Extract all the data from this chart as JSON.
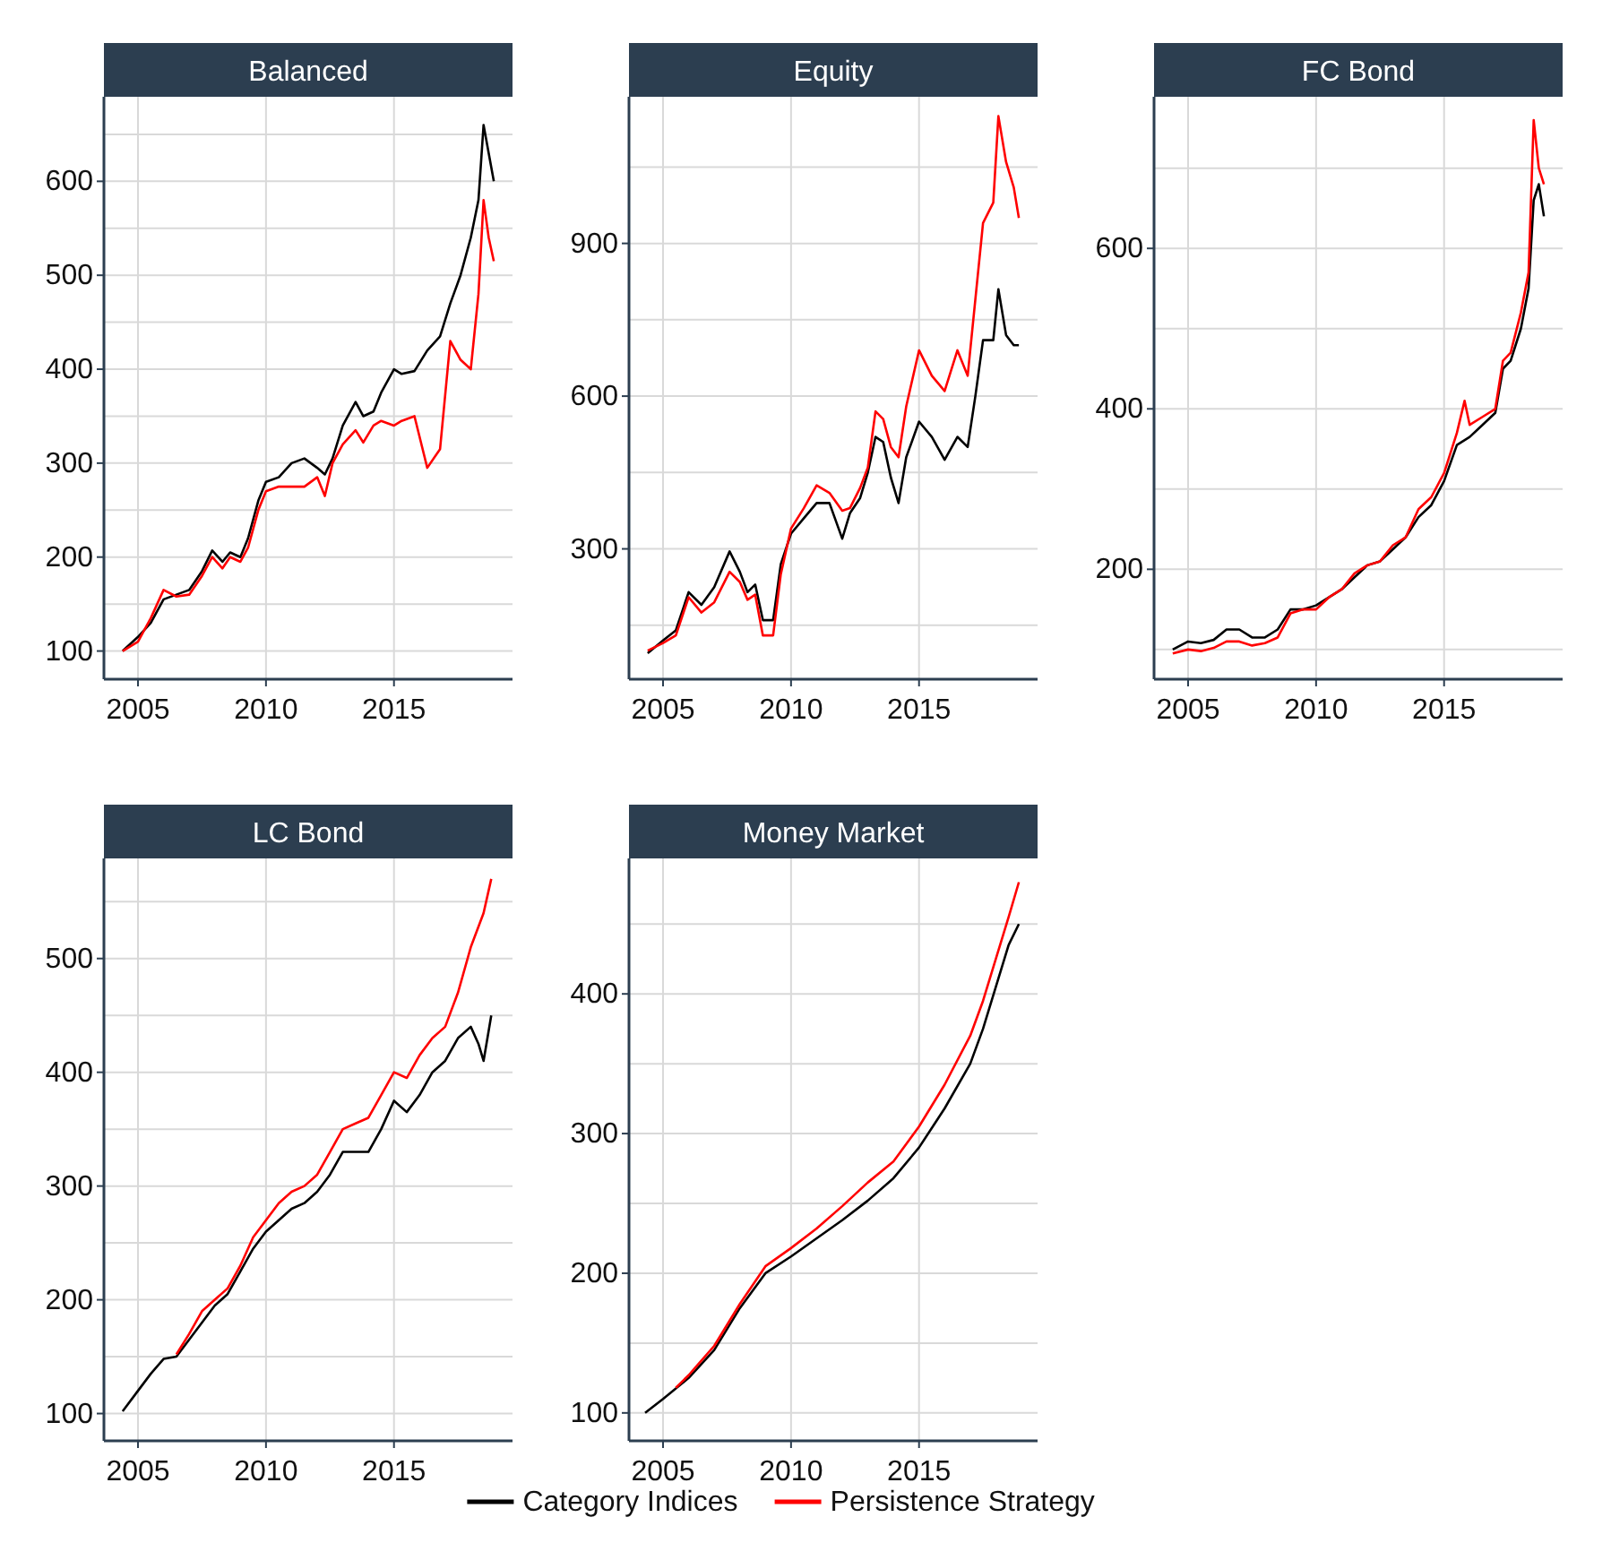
{
  "chart_data": [
    {
      "type": "line",
      "title": "Balanced",
      "xlim": [
        2003.67,
        2019.63
      ],
      "xticks": [
        2005,
        2010,
        2015
      ],
      "ylim": [
        70,
        690
      ],
      "yticks": [
        {
          "value": 150,
          "label": null
        },
        {
          "value": 250,
          "label": null
        },
        {
          "value": 350,
          "label": null
        },
        {
          "value": 450,
          "label": null
        },
        {
          "value": 550,
          "label": null
        },
        {
          "value": 650,
          "label": null
        },
        100,
        200,
        300,
        400,
        500,
        600
      ],
      "grid": true,
      "legend": "bottom",
      "series": [
        {
          "name": "Category Indices",
          "color": "#000000",
          "x": [
            2004.4,
            2005,
            2005.5,
            2006,
            2006.5,
            2007,
            2007.5,
            2007.9,
            2008.3,
            2008.6,
            2009,
            2009.3,
            2009.7,
            2010,
            2010.5,
            2011,
            2011.5,
            2012,
            2012.3,
            2012.6,
            2013,
            2013.5,
            2013.8,
            2014.2,
            2014.5,
            2015,
            2015.3,
            2015.8,
            2016.3,
            2016.8,
            2017.2,
            2017.6,
            2018,
            2018.3,
            2018.5,
            2018.7,
            2018.9
          ],
          "values": [
            100,
            115,
            130,
            155,
            160,
            165,
            185,
            207,
            195,
            205,
            200,
            220,
            260,
            280,
            285,
            300,
            305,
            295,
            288,
            305,
            340,
            365,
            350,
            355,
            375,
            400,
            395,
            398,
            420,
            435,
            470,
            500,
            540,
            580,
            660,
            630,
            600
          ]
        },
        {
          "name": "Persistence Strategy",
          "color": "#ff0000",
          "x": [
            2004.4,
            2005,
            2005.5,
            2006,
            2006.5,
            2007,
            2007.5,
            2007.9,
            2008.3,
            2008.6,
            2009,
            2009.3,
            2009.7,
            2010,
            2010.5,
            2011,
            2011.5,
            2012,
            2012.3,
            2012.6,
            2013,
            2013.5,
            2013.8,
            2014.2,
            2014.5,
            2015,
            2015.3,
            2015.8,
            2016.3,
            2016.8,
            2017.2,
            2017.6,
            2018,
            2018.3,
            2018.5,
            2018.7,
            2018.9
          ],
          "values": [
            100,
            110,
            135,
            165,
            158,
            160,
            180,
            200,
            188,
            200,
            195,
            210,
            250,
            270,
            275,
            275,
            275,
            285,
            265,
            300,
            320,
            335,
            322,
            340,
            345,
            340,
            345,
            350,
            295,
            315,
            430,
            410,
            400,
            480,
            580,
            540,
            515
          ]
        }
      ]
    },
    {
      "type": "line",
      "title": "Equity",
      "xlim": [
        2003.67,
        2019.63
      ],
      "xticks": [
        2005,
        2010,
        2015
      ],
      "ylim": [
        44,
        1188
      ],
      "yticks": [
        {
          "value": 150,
          "label": null
        },
        {
          "value": 450,
          "label": null
        },
        {
          "value": 750,
          "label": null
        },
        {
          "value": 1050,
          "label": null
        },
        300,
        600,
        900
      ],
      "grid": true,
      "series": [
        {
          "color": "#000000",
          "x": [
            2004.4,
            2005,
            2005.5,
            2006,
            2006.5,
            2007,
            2007.6,
            2008,
            2008.3,
            2008.6,
            2008.9,
            2009.3,
            2009.6,
            2010,
            2010.5,
            2011,
            2011.5,
            2012,
            2012.3,
            2012.7,
            2013,
            2013.3,
            2013.6,
            2013.9,
            2014.2,
            2014.5,
            2015,
            2015.5,
            2016,
            2016.5,
            2016.9,
            2017.2,
            2017.5,
            2017.9,
            2018.1,
            2018.4,
            2018.7,
            2018.9
          ],
          "values": [
            95,
            120,
            140,
            215,
            190,
            225,
            295,
            255,
            215,
            230,
            160,
            160,
            270,
            330,
            360,
            390,
            390,
            320,
            370,
            400,
            450,
            520,
            510,
            440,
            390,
            480,
            550,
            520,
            475,
            520,
            500,
            600,
            710,
            710,
            810,
            720,
            700,
            700
          ]
        },
        {
          "color": "#ff0000",
          "x": [
            2004.4,
            2005,
            2005.5,
            2006,
            2006.5,
            2007,
            2007.6,
            2008,
            2008.3,
            2008.6,
            2008.9,
            2009.3,
            2009.6,
            2010,
            2010.5,
            2011,
            2011.5,
            2012,
            2012.3,
            2012.7,
            2013,
            2013.3,
            2013.6,
            2013.9,
            2014.2,
            2014.5,
            2015,
            2015.5,
            2016,
            2016.5,
            2016.9,
            2017.2,
            2017.5,
            2017.9,
            2018.1,
            2018.4,
            2018.7,
            2018.9
          ],
          "values": [
            100,
            115,
            130,
            205,
            175,
            195,
            255,
            235,
            200,
            210,
            130,
            130,
            250,
            340,
            380,
            425,
            410,
            375,
            380,
            420,
            460,
            570,
            555,
            500,
            480,
            580,
            690,
            640,
            610,
            690,
            640,
            790,
            940,
            980,
            1150,
            1060,
            1010,
            950
          ]
        }
      ]
    },
    {
      "type": "line",
      "title": "FC Bond",
      "xlim": [
        2003.67,
        2019.63
      ],
      "xticks": [
        2005,
        2010,
        2015
      ],
      "ylim": [
        63,
        789
      ],
      "yticks": [
        {
          "value": 100,
          "label": null
        },
        {
          "value": 300,
          "label": null
        },
        {
          "value": 500,
          "label": null
        },
        {
          "value": 700,
          "label": null
        },
        200,
        400,
        600
      ],
      "grid": true,
      "series": [
        {
          "color": "#000000",
          "x": [
            2004.4,
            2005,
            2005.5,
            2006,
            2006.5,
            2007,
            2007.5,
            2008,
            2008.5,
            2009,
            2009.5,
            2010,
            2010.5,
            2011,
            2011.5,
            2012,
            2012.5,
            2013,
            2013.5,
            2014,
            2014.5,
            2015,
            2015.5,
            2016,
            2016.5,
            2017,
            2017.3,
            2017.6,
            2018,
            2018.3,
            2018.5,
            2018.7,
            2018.9
          ],
          "values": [
            100,
            110,
            108,
            112,
            125,
            125,
            115,
            115,
            125,
            150,
            150,
            155,
            165,
            175,
            190,
            205,
            210,
            225,
            240,
            265,
            280,
            310,
            355,
            365,
            380,
            395,
            450,
            460,
            500,
            550,
            660,
            680,
            640
          ]
        },
        {
          "color": "#ff0000",
          "x": [
            2004.4,
            2005,
            2005.5,
            2006,
            2006.5,
            2007,
            2007.5,
            2008,
            2008.5,
            2009,
            2009.5,
            2010,
            2010.5,
            2011,
            2011.5,
            2012,
            2012.5,
            2013,
            2013.5,
            2014,
            2014.5,
            2015,
            2015.5,
            2015.8,
            2016,
            2016.5,
            2017,
            2017.3,
            2017.6,
            2018,
            2018.3,
            2018.5,
            2018.7,
            2018.9
          ],
          "values": [
            95,
            100,
            98,
            102,
            110,
            110,
            105,
            108,
            115,
            145,
            150,
            150,
            165,
            175,
            195,
            205,
            210,
            230,
            240,
            275,
            290,
            320,
            370,
            410,
            380,
            390,
            400,
            460,
            470,
            520,
            570,
            760,
            700,
            680
          ]
        }
      ]
    },
    {
      "type": "line",
      "title": "LC Bond",
      "xlim": [
        2003.67,
        2019.63
      ],
      "xticks": [
        2005,
        2010,
        2015
      ],
      "ylim": [
        76,
        588
      ],
      "yticks": [
        {
          "value": 150,
          "label": null
        },
        {
          "value": 250,
          "label": null
        },
        {
          "value": 350,
          "label": null
        },
        {
          "value": 450,
          "label": null
        },
        {
          "value": 550,
          "label": null
        },
        100,
        200,
        300,
        400,
        500
      ],
      "grid": true,
      "series": [
        {
          "color": "#000000",
          "x": [
            2004.4,
            2005,
            2005.5,
            2006,
            2006.5,
            2007,
            2007.5,
            2008,
            2008.5,
            2009,
            2009.5,
            2010,
            2010.5,
            2011,
            2011.5,
            2012,
            2012.5,
            2013,
            2013.5,
            2014,
            2014.5,
            2015,
            2015.5,
            2016,
            2016.5,
            2017,
            2017.5,
            2018,
            2018.3,
            2018.5,
            2018.8
          ],
          "values": [
            102,
            120,
            135,
            148,
            150,
            165,
            180,
            195,
            205,
            225,
            245,
            260,
            270,
            280,
            285,
            295,
            310,
            330,
            330,
            330,
            350,
            375,
            365,
            380,
            400,
            410,
            430,
            440,
            425,
            410,
            450
          ]
        },
        {
          "color": "#ff0000",
          "x": [
            2006.5,
            2007,
            2007.5,
            2008,
            2008.5,
            2009,
            2009.5,
            2010,
            2010.5,
            2011,
            2011.5,
            2012,
            2012.5,
            2013,
            2013.5,
            2014,
            2014.5,
            2015,
            2015.5,
            2016,
            2016.5,
            2017,
            2017.5,
            2018,
            2018.5,
            2018.8
          ],
          "values": [
            152,
            170,
            190,
            200,
            210,
            230,
            255,
            270,
            285,
            295,
            300,
            310,
            330,
            350,
            355,
            360,
            380,
            400,
            395,
            415,
            430,
            440,
            470,
            510,
            540,
            570
          ]
        }
      ]
    },
    {
      "type": "line",
      "title": "Money Market",
      "xlim": [
        2003.67,
        2019.63
      ],
      "xticks": [
        2005,
        2010,
        2015
      ],
      "ylim": [
        80,
        497
      ],
      "yticks": [
        {
          "value": 150,
          "label": null
        },
        {
          "value": 250,
          "label": null
        },
        {
          "value": 350,
          "label": null
        },
        {
          "value": 450,
          "label": null
        },
        100,
        200,
        300,
        400
      ],
      "grid": true,
      "series": [
        {
          "color": "#000000",
          "x": [
            2004.3,
            2005,
            2006,
            2007,
            2008,
            2009,
            2010,
            2011,
            2012,
            2013,
            2014,
            2015,
            2016,
            2017,
            2017.5,
            2018,
            2018.5,
            2018.9
          ],
          "values": [
            100,
            110,
            125,
            145,
            175,
            200,
            212,
            225,
            238,
            252,
            268,
            290,
            318,
            350,
            375,
            405,
            435,
            450
          ]
        },
        {
          "color": "#ff0000",
          "x": [
            2005.5,
            2006,
            2007,
            2008,
            2009,
            2010,
            2011,
            2012,
            2013,
            2014,
            2015,
            2016,
            2017,
            2017.5,
            2018,
            2018.5,
            2018.9
          ],
          "values": [
            118,
            127,
            148,
            178,
            205,
            218,
            232,
            248,
            265,
            280,
            305,
            335,
            370,
            395,
            425,
            455,
            480
          ]
        }
      ]
    }
  ]
}
